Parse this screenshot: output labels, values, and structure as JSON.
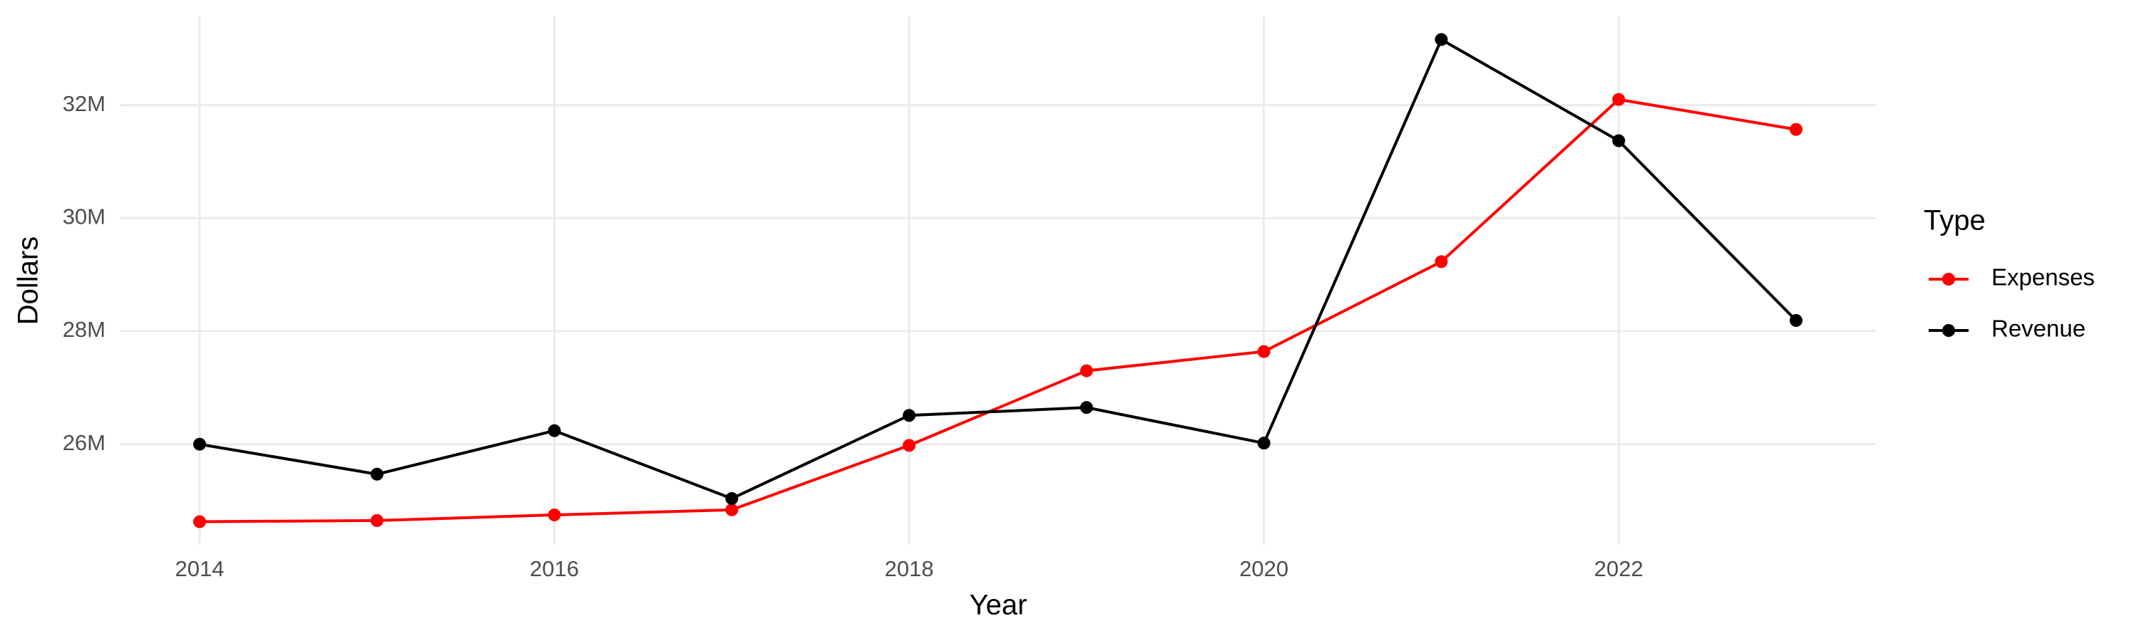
{
  "chart_data": {
    "type": "line",
    "x_label": "Year",
    "y_label": "Dollars",
    "legend_title": "Type",
    "x": [
      2014,
      2015,
      2016,
      2017,
      2018,
      2019,
      2020,
      2021,
      2022,
      2023
    ],
    "series": [
      {
        "name": "Expenses",
        "color": "#ff0000",
        "values": [
          24630000,
          24650000,
          24750000,
          24840000,
          25980000,
          27300000,
          27640000,
          29230000,
          32100000,
          31570000
        ]
      },
      {
        "name": "Revenue",
        "color": "#000000",
        "values": [
          26000000,
          25470000,
          26240000,
          25040000,
          26510000,
          26650000,
          26020000,
          33160000,
          31370000,
          28190000
        ]
      }
    ],
    "xlim": [
      2013.55,
      2023.45
    ],
    "xticks": [
      2014,
      2016,
      2018,
      2020,
      2022
    ],
    "ylim": [
      24220000,
      33570000
    ],
    "yticks": [
      {
        "value": 26000000,
        "label": "26M"
      },
      {
        "value": 28000000,
        "label": "28M"
      },
      {
        "value": 30000000,
        "label": "30M"
      },
      {
        "value": 32000000,
        "label": "32M"
      }
    ],
    "grid": true,
    "legend": "right"
  }
}
